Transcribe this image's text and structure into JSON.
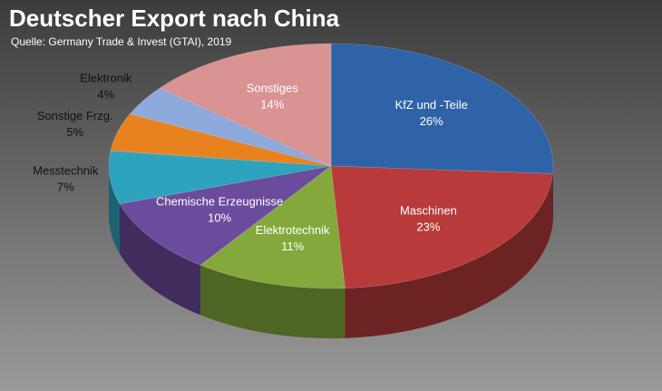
{
  "chart_data": {
    "type": "pie3d",
    "title": "Deutscher Export nach China",
    "subtitle": "Quelle: Germany Trade & Invest (GTAI), 2019",
    "categories": [
      "KfZ und -Teile",
      "Maschinen",
      "Elektrotechnik",
      "Chemische Erzeugnisse",
      "Messtechnik",
      "Sonstige Frzg.",
      "Elektronik",
      "Sonstiges"
    ],
    "values": [
      26,
      23,
      11,
      10,
      7,
      5,
      4,
      14
    ],
    "value_labels": [
      "26%",
      "23%",
      "11%",
      "10%",
      "7%",
      "5%",
      "4%",
      "14%"
    ],
    "colors": [
      "#2f63a8",
      "#b83a3a",
      "#84a83c",
      "#6a4b9c",
      "#2ea3bd",
      "#e8821f",
      "#8ea9dc",
      "#d99393"
    ]
  }
}
